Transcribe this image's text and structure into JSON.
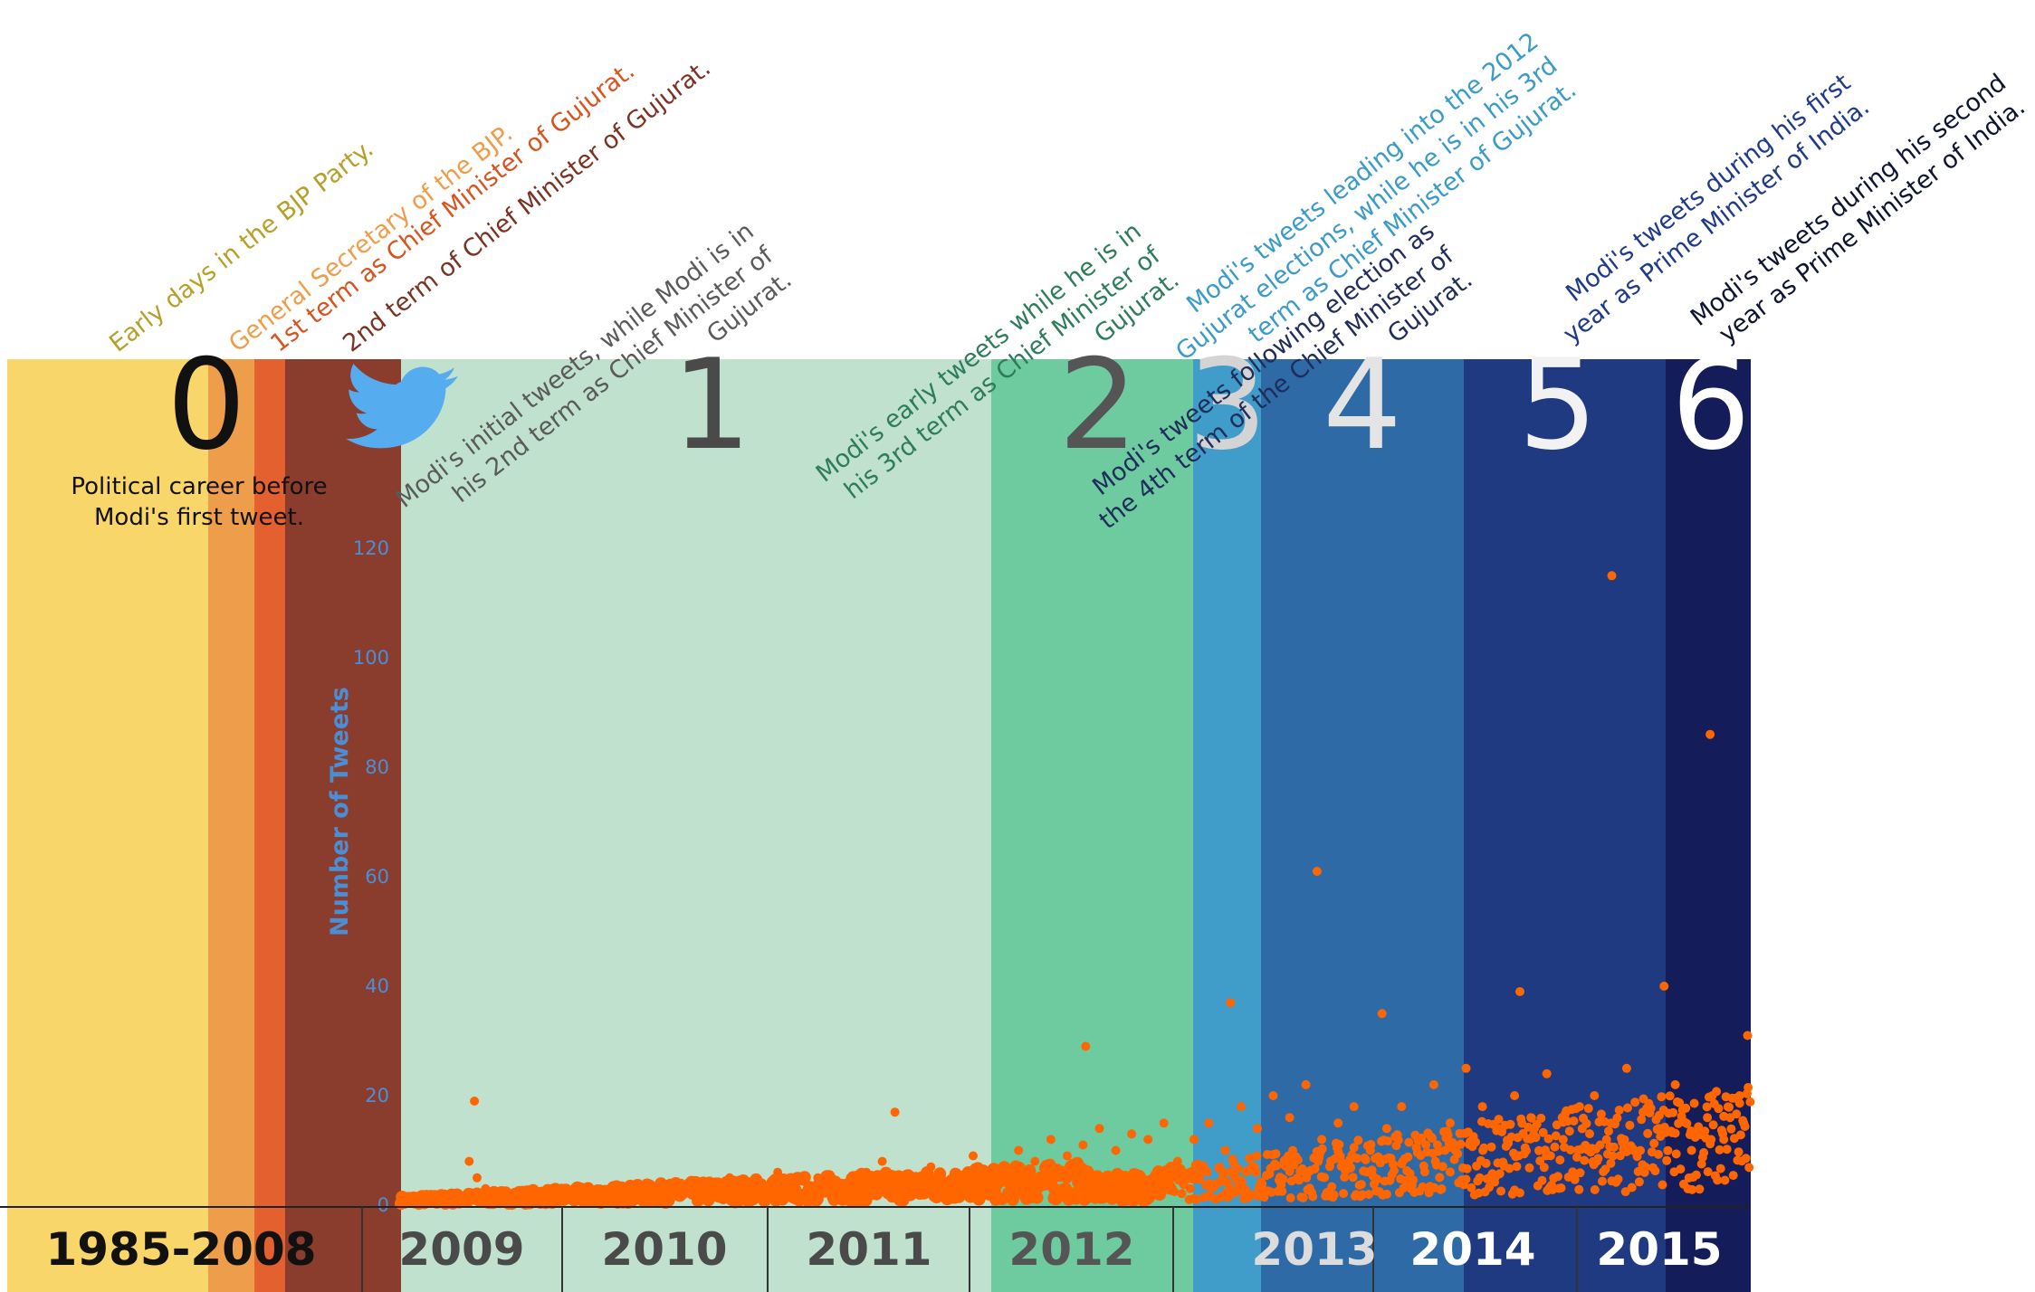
{
  "colors": {
    "seg0a": "#F9D66A",
    "seg0b": "#EE9E4A",
    "seg0c": "#E4602E",
    "seg0d": "#8A3C2D",
    "seg1": "#BFE1CE",
    "seg2": "#6ECB9F",
    "seg3": "#409CC8",
    "seg4": "#2E6AA6",
    "seg5": "#203A82",
    "seg6": "#141D5A",
    "dots": "#FF6600",
    "axis": "#4A8FD6",
    "twitter": "#55ACEE"
  },
  "annotations": [
    {
      "id": "a0",
      "lines": [
        "Early days in the BJP Party."
      ],
      "color": "#B5A12A"
    },
    {
      "id": "a1",
      "lines": [
        "General Secretary of the BJP."
      ],
      "color": "#EE9E4A"
    },
    {
      "id": "a2",
      "lines": [
        "1st term as Chief Minister of Gujurat."
      ],
      "color": "#D9531E"
    },
    {
      "id": "a3",
      "lines": [
        "2nd term of Chief Minister of Gujurat."
      ],
      "color": "#7A3323"
    },
    {
      "id": "a4",
      "lines": [
        "Modi's initial tweets, while Modi is in",
        "his 2nd term as Chief Minister of",
        "Gujurat."
      ],
      "color": "#5A5A5A"
    },
    {
      "id": "a5",
      "lines": [
        "Modi's early tweets while he is in",
        "his 3rd term as Chief Minister of",
        "Gujurat."
      ],
      "color": "#2E7D5A"
    },
    {
      "id": "a6",
      "lines": [
        "Modi's tweets leading into the 2012",
        "Gujurat elections, while he is in his 3rd",
        "term as Chief Minister of Gujurat."
      ],
      "color": "#3A9AC8"
    },
    {
      "id": "a7",
      "lines": [
        "Modi's tweets following election as",
        "the 4th term of the Chief Minister of",
        "Gujurat."
      ],
      "color": "#1F2D5A"
    },
    {
      "id": "a8",
      "lines": [
        "Modi's tweets during his first",
        "year as Prime Minister of India."
      ],
      "color": "#1F3A8A"
    },
    {
      "id": "a9",
      "lines": [
        "Modi's tweets during his second",
        "year as Prime Minister of India."
      ],
      "color": "#0E1430"
    }
  ],
  "segments": [
    {
      "num": "0",
      "numColor": "#111111"
    },
    {
      "num": "1",
      "numColor": "#4A4A4A"
    },
    {
      "num": "2",
      "numColor": "#555555"
    },
    {
      "num": "3",
      "numColor": "#D4D4D4"
    },
    {
      "num": "4",
      "numColor": "#E4E4E4"
    },
    {
      "num": "5",
      "numColor": "#F2F2F2"
    },
    {
      "num": "6",
      "numColor": "#FFFFFF"
    }
  ],
  "preCareerNote": [
    "Political career before",
    "Modi's first tweet."
  ],
  "chart_data": {
    "type": "scatter",
    "ylabel": "Number of Tweets",
    "ylim": [
      0,
      130
    ],
    "yticks": [
      0,
      20,
      40,
      60,
      80,
      100,
      120
    ],
    "x_range": [
      "2009-01-01",
      "2015-12-31"
    ],
    "years": [
      {
        "label": "1985-2008",
        "color": "#111111"
      },
      {
        "label": "2009",
        "color": "#4A4A4A"
      },
      {
        "label": "2010",
        "color": "#4A4A4A"
      },
      {
        "label": "2011",
        "color": "#4A4A4A"
      },
      {
        "label": "2012",
        "color": "#555555"
      },
      {
        "label": "2013",
        "color": "#DCDCDC"
      },
      {
        "label": "2014",
        "color": "#FFFFFF"
      },
      {
        "label": "2015",
        "color": "#FFFFFF"
      }
    ],
    "series": [
      {
        "x": [
          "2009-03-20",
          "2009-04-15",
          "2009-05-10",
          "2009-05-25",
          "2009-06-10",
          "2009-07-15",
          "2009-09-01",
          "2009-10-20",
          "2009-12-01",
          "2010-02-01",
          "2010-03-15",
          "2010-05-01",
          "2010-06-15",
          "2010-08-01",
          "2010-09-15",
          "2010-11-01",
          "2010-12-15",
          "2011-01-20",
          "2011-03-01",
          "2011-04-15",
          "2011-06-01",
          "2011-07-01",
          "2011-08-15",
          "2011-10-01",
          "2011-11-15",
          "2011-12-20",
          "2012-01-15",
          "2012-02-15",
          "2012-03-15",
          "2012-04-15",
          "2012-05-15",
          "2012-06-15",
          "2012-07-15",
          "2012-08-15",
          "2012-09-15",
          "2012-10-15",
          "2012-11-15",
          "2012-12-15",
          "2013-01-10",
          "2013-02-10",
          "2013-03-10",
          "2013-04-10",
          "2013-05-10",
          "2013-06-10",
          "2013-07-10",
          "2013-08-10",
          "2013-09-10",
          "2013-10-10",
          "2013-11-10",
          "2013-12-10",
          "2014-01-10",
          "2014-02-10",
          "2014-03-10",
          "2014-04-10",
          "2014-05-10",
          "2014-06-10",
          "2014-07-10",
          "2014-08-10",
          "2014-09-10",
          "2014-10-10",
          "2014-11-10",
          "2014-12-10",
          "2015-01-10",
          "2015-02-10",
          "2015-03-10",
          "2015-04-10",
          "2015-05-10",
          "2015-06-10",
          "2015-07-10",
          "2015-08-10",
          "2015-09-10",
          "2015-10-10",
          "2015-11-10",
          "2015-12-10",
          "2009-05-20",
          "2011-07-25",
          "2012-07-20",
          "2013-04-20",
          "2013-10-01",
          "2014-02-01",
          "2014-10-20",
          "2015-04-12",
          "2015-07-20",
          "2015-10-15",
          "2015-12-25"
        ],
        "y": [
          1,
          2,
          8,
          5,
          3,
          2,
          2,
          3,
          2,
          2,
          3,
          2,
          4,
          3,
          5,
          4,
          6,
          3,
          5,
          4,
          6,
          8,
          5,
          7,
          6,
          9,
          4,
          7,
          10,
          8,
          12,
          9,
          11,
          14,
          10,
          13,
          12,
          15,
          8,
          12,
          15,
          10,
          18,
          14,
          20,
          16,
          22,
          12,
          15,
          18,
          10,
          14,
          18,
          12,
          22,
          15,
          25,
          18,
          14,
          20,
          16,
          24,
          12,
          18,
          20,
          15,
          25,
          17,
          14,
          22,
          10,
          16,
          12,
          20,
          19,
          17,
          29,
          37,
          61,
          35,
          39,
          115,
          40,
          86,
          31
        ]
      }
    ]
  }
}
